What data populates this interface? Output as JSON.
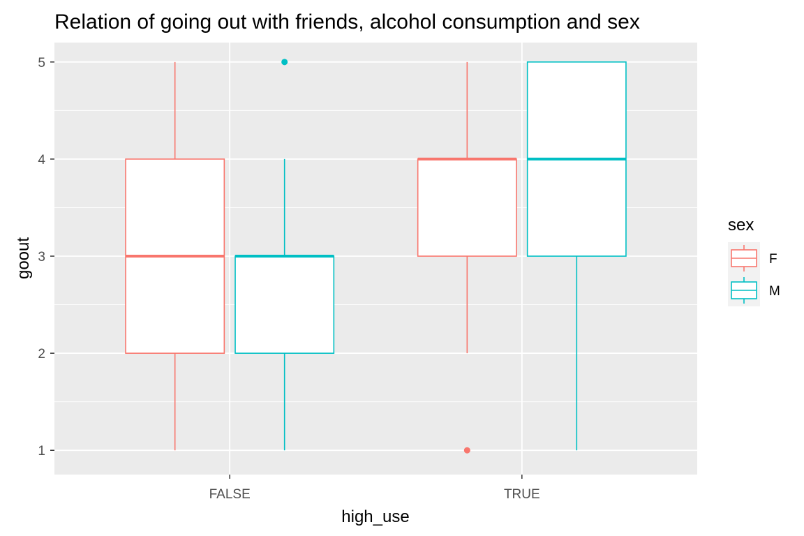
{
  "chart_data": {
    "type": "boxplot",
    "title": "Relation of going out with friends, alcohol consumption and sex",
    "xlabel": "high_use",
    "ylabel": "goout",
    "categories": [
      "FALSE",
      "TRUE"
    ],
    "ylim": [
      0.75,
      5.2
    ],
    "yticks": [
      1,
      2,
      3,
      4,
      5
    ],
    "grid": true,
    "legend": {
      "title": "sex",
      "position": "right"
    },
    "series": [
      {
        "name": "F",
        "color": "#F8766D",
        "boxes": [
          {
            "category": "FALSE",
            "min": 1,
            "q1": 2,
            "median": 3,
            "q3": 4,
            "max": 5,
            "outliers": []
          },
          {
            "category": "TRUE",
            "min": 2,
            "q1": 3,
            "median": 4,
            "q3": 4,
            "max": 5,
            "outliers": [
              1
            ]
          }
        ]
      },
      {
        "name": "M",
        "color": "#00BFC4",
        "boxes": [
          {
            "category": "FALSE",
            "min": 1,
            "q1": 2,
            "median": 3,
            "q3": 3,
            "max": 4,
            "outliers": [
              5
            ]
          },
          {
            "category": "TRUE",
            "min": 1,
            "q1": 3,
            "median": 4,
            "q3": 5,
            "max": 5,
            "outliers": []
          }
        ]
      }
    ]
  }
}
